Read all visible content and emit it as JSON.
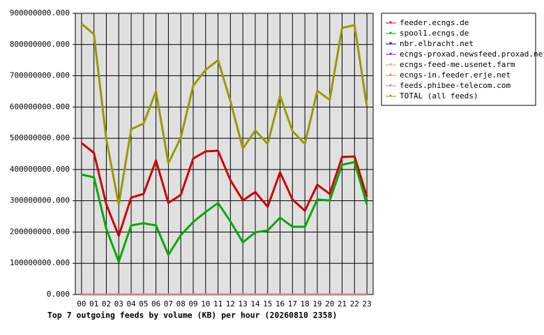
{
  "chart_data": {
    "type": "line",
    "title": "Top 7 outgoing feeds by volume (KB) per hour (20260810 2358)",
    "categories": [
      "00",
      "01",
      "02",
      "03",
      "04",
      "05",
      "06",
      "07",
      "08",
      "09",
      "10",
      "11",
      "12",
      "13",
      "14",
      "15",
      "16",
      "17",
      "18",
      "19",
      "20",
      "21",
      "22",
      "23"
    ],
    "ylim": [
      0,
      900000000
    ],
    "yticks": [
      {
        "value": 0,
        "label": "0.000"
      },
      {
        "value": 100000000,
        "label": "100000000.000"
      },
      {
        "value": 200000000,
        "label": "200000000.000"
      },
      {
        "value": 300000000,
        "label": "300000000.000"
      },
      {
        "value": 400000000,
        "label": "400000000.000"
      },
      {
        "value": 500000000,
        "label": "500000000.000"
      },
      {
        "value": 600000000,
        "label": "600000000.000"
      },
      {
        "value": 700000000,
        "label": "700000000.000"
      },
      {
        "value": 800000000,
        "label": "800000000.000"
      },
      {
        "value": 900000000,
        "label": "900000000.000"
      }
    ],
    "grid": true,
    "legend": "right",
    "series": [
      {
        "name": "feeder.ecngs.de",
        "color": "#cc0000",
        "values": [
          485000000,
          453000000,
          288000000,
          188000000,
          310000000,
          322000000,
          429000000,
          293000000,
          319000000,
          435000000,
          458000000,
          460000000,
          366000000,
          301000000,
          328000000,
          281000000,
          391000000,
          304000000,
          268000000,
          351000000,
          322000000,
          440000000,
          442000000,
          313000000
        ]
      },
      {
        "name": "spool1.ecngs.de",
        "color": "#00aa00",
        "values": [
          384000000,
          375000000,
          210000000,
          105000000,
          221000000,
          228000000,
          221000000,
          127000000,
          190000000,
          232000000,
          264000000,
          293000000,
          234000000,
          167000000,
          199000000,
          205000000,
          246000000,
          217000000,
          217000000,
          304000000,
          301000000,
          415000000,
          424000000,
          288000000
        ]
      },
      {
        "name": "nbr.elbracht.net",
        "color": "#0000cc",
        "values": [
          0,
          0,
          0,
          0,
          0,
          0,
          0,
          0,
          0,
          0,
          0,
          0,
          0,
          0,
          0,
          0,
          0,
          0,
          0,
          0,
          0,
          0,
          0,
          0
        ]
      },
      {
        "name": "ecngs-proxad.newsfeed.proxad.net",
        "color": "#aa00aa",
        "values": [
          0,
          0,
          0,
          0,
          0,
          0,
          0,
          0,
          0,
          0,
          0,
          0,
          0,
          0,
          0,
          0,
          0,
          0,
          0,
          0,
          0,
          0,
          0,
          0
        ]
      },
      {
        "name": "ecngs-feed-me.usenet.farm",
        "color": "#ff9988",
        "values": [
          0,
          0,
          0,
          0,
          0,
          0,
          0,
          0,
          0,
          0,
          0,
          0,
          0,
          0,
          0,
          0,
          0,
          0,
          0,
          0,
          0,
          0,
          0,
          0
        ]
      },
      {
        "name": "ecngs-in.feeder.erje.net",
        "color": "#ee8800",
        "values": [
          0,
          0,
          0,
          0,
          0,
          0,
          0,
          0,
          0,
          0,
          0,
          0,
          0,
          0,
          0,
          0,
          0,
          0,
          0,
          0,
          0,
          0,
          0,
          0
        ]
      },
      {
        "name": "feeds.phibee-telecom.com",
        "color": "#cc8888",
        "values": [
          0,
          0,
          0,
          0,
          0,
          0,
          0,
          0,
          0,
          0,
          0,
          0,
          0,
          0,
          0,
          0,
          0,
          0,
          0,
          0,
          0,
          0,
          0,
          0
        ]
      },
      {
        "name": "TOTAL (all feeds)",
        "color": "#999900",
        "values": [
          866000000,
          833000000,
          496000000,
          288000000,
          529000000,
          547000000,
          650000000,
          420000000,
          502000000,
          668000000,
          719000000,
          750000000,
          619000000,
          467000000,
          525000000,
          482000000,
          636000000,
          523000000,
          482000000,
          652000000,
          623000000,
          853000000,
          862000000,
          601000000
        ]
      }
    ]
  }
}
